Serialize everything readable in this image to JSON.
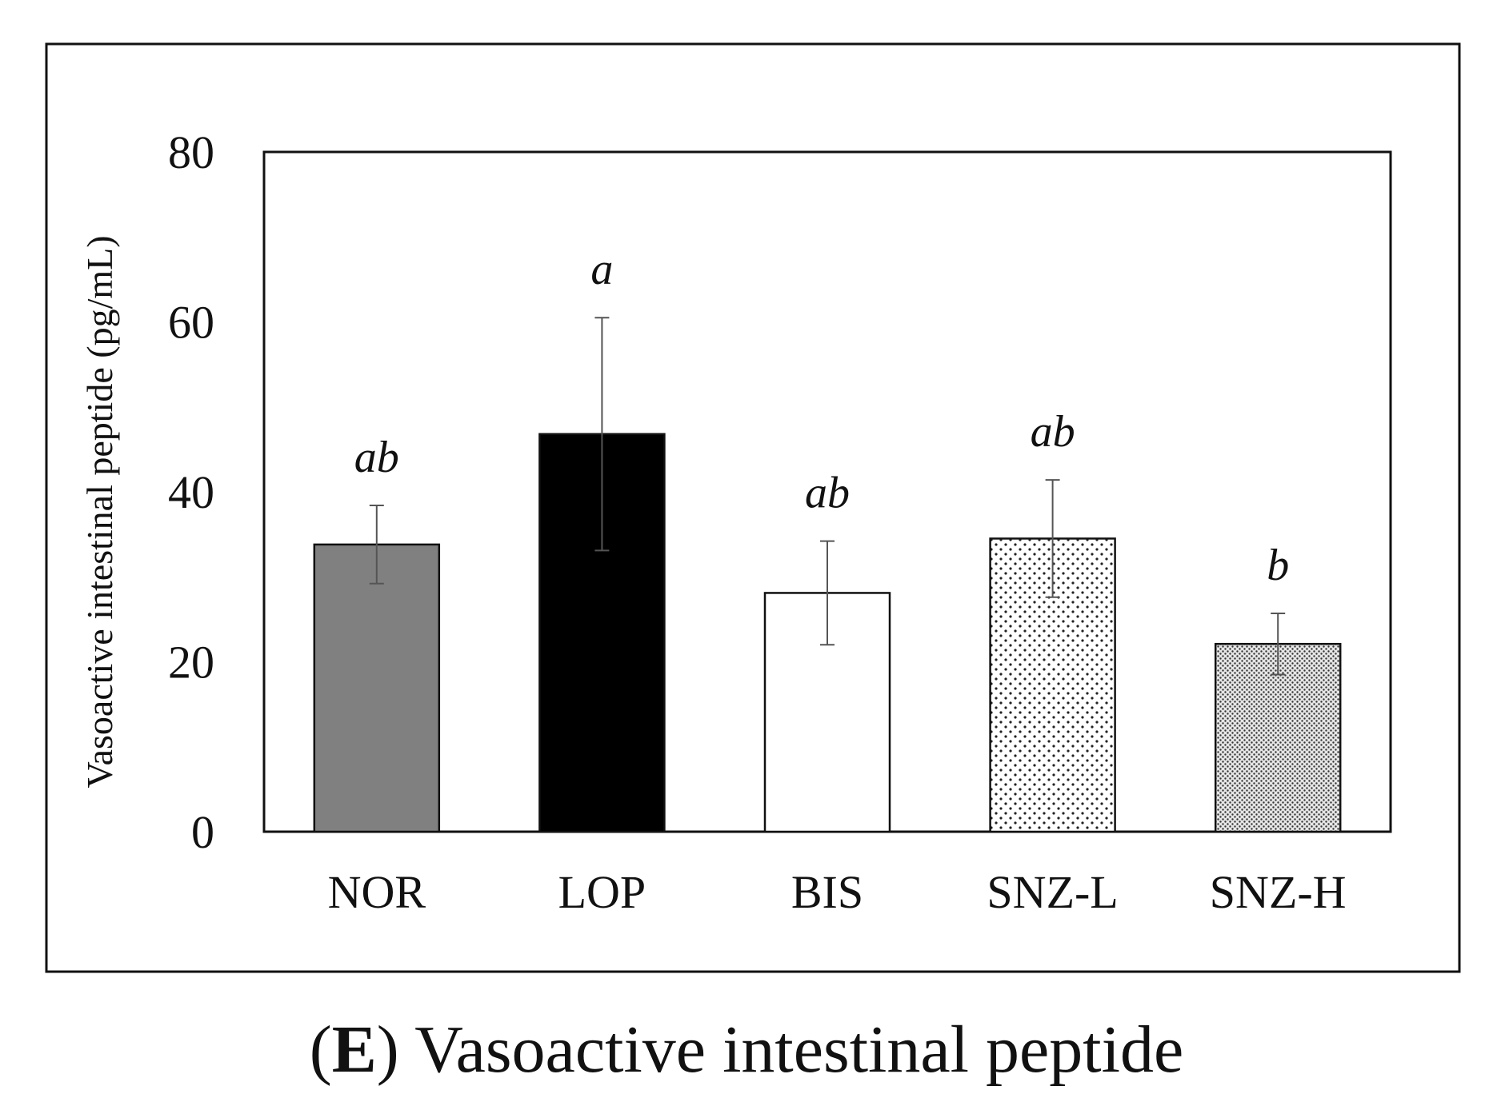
{
  "chart_data": {
    "type": "bar",
    "categories": [
      "NOR",
      "LOP",
      "BIS",
      "SNZ-L",
      "SNZ-H"
    ],
    "values": [
      33.8,
      46.8,
      28.1,
      34.5,
      22.1
    ],
    "error": [
      4.6,
      13.7,
      6.1,
      6.9,
      3.6
    ],
    "significance": [
      "ab",
      "a",
      "ab",
      "ab",
      "b"
    ],
    "fills": [
      "gray",
      "black",
      "white",
      "sparse-dots",
      "dense-dots"
    ],
    "ylabel": "Vasoactive intestinal peptide (pg/mL)",
    "xlabel": "",
    "ylim": [
      0,
      80
    ],
    "yticks": [
      0,
      20,
      40,
      60,
      80
    ],
    "grid": false
  },
  "caption": {
    "open_paren": "(",
    "letter": "E",
    "close_paren": ")",
    "text": " Vasoactive intestinal peptide"
  },
  "colors": {
    "gray_fill": "#808080",
    "black_fill": "#000000",
    "white_fill": "#ffffff",
    "axis": "#111111",
    "error_bar": "#555555"
  }
}
